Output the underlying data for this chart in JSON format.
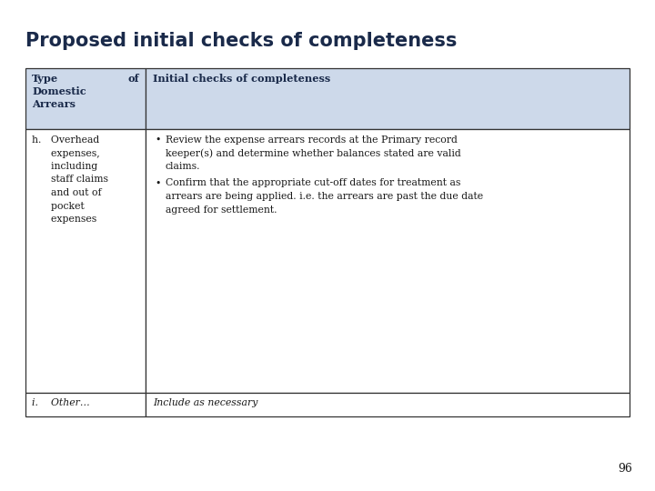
{
  "title": "Proposed initial checks of completeness",
  "title_color": "#1a2a4a",
  "background_color": "#ffffff",
  "header_bg_color": "#cdd9ea",
  "col1_header_line1": "Type",
  "col1_header_of": "of",
  "col1_header_line2": "Domestic",
  "col1_header_line3": "Arrears",
  "col2_header": "Initial checks of completeness",
  "row_h_col1_lines": [
    "h.   Overhead",
    "      expenses,",
    "      including",
    "      staff claims",
    "      and out of",
    "      pocket",
    "      expenses"
  ],
  "bullet1_lines": [
    "Review the expense arrears records at the Primary record",
    "keeper(s) and determine whether balances stated are valid",
    "claims."
  ],
  "bullet2_lines": [
    "Confirm that the appropriate cut-off dates for treatment as",
    "arrears are being applied. i.e. the arrears are past the due date",
    "agreed for settlement."
  ],
  "row_i_col1": "i.    Other…",
  "row_i_col2": "Include as necessary",
  "page_number": "96",
  "border_color": "#333333",
  "text_color": "#1a1a1a"
}
